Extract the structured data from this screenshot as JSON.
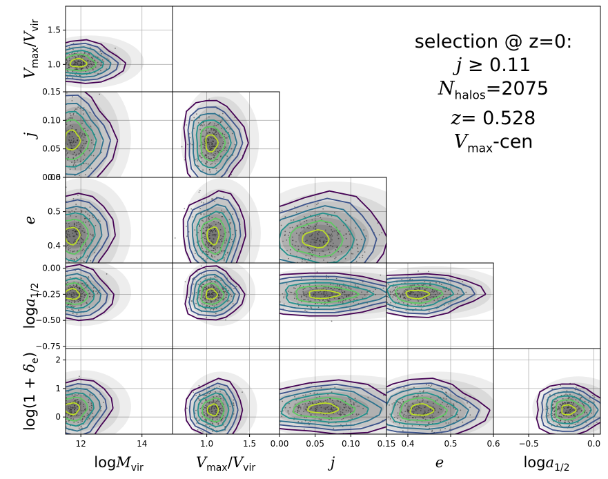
{
  "chart_data": {
    "type": "corner-plot",
    "annotation": {
      "line1": "selection @ z=0:",
      "line2_var": "j",
      "line2_rel": "≥ 0.11",
      "nhalos_label": "halos",
      "nhalos_value": "=2075",
      "z_value": "= 0.528",
      "cen_label": "-cen"
    },
    "variables": [
      {
        "key": "logMvir",
        "tick_values": [
          12,
          14
        ],
        "tick_labels": [
          "12",
          "14"
        ],
        "range": [
          11.5,
          15.0
        ]
      },
      {
        "key": "vmax_vvir",
        "tick_values": [
          1.0,
          1.5
        ],
        "tick_labels": [
          "1.0",
          "1.5"
        ],
        "range": [
          0.6,
          1.85
        ]
      },
      {
        "key": "j",
        "tick_values": [
          0.0,
          0.05,
          0.1,
          0.15
        ],
        "tick_labels": [
          "0.00",
          "0.05",
          "0.10",
          "0.15"
        ],
        "range": [
          0.0,
          0.15
        ]
      },
      {
        "key": "e",
        "tick_values": [
          0.4,
          0.5,
          0.6
        ],
        "tick_labels": [
          "0.4",
          "0.5",
          "0.6"
        ],
        "range": [
          0.35,
          0.6
        ]
      },
      {
        "key": "loga12",
        "tick_values": [
          -0.75,
          -0.5,
          -0.25,
          0.0
        ],
        "tick_labels": [
          "−0.75",
          "−0.50",
          "−0.25",
          "0.00"
        ],
        "xtick_labels": [
          "−0.5",
          "0.0"
        ],
        "xtick_values": [
          -0.5,
          0.0
        ],
        "range": [
          -0.77,
          0.05
        ]
      },
      {
        "key": "logdelta",
        "tick_values": [
          0,
          1,
          2
        ],
        "tick_labels": [
          "0",
          "1",
          "2"
        ],
        "range": [
          -0.6,
          2.4
        ]
      }
    ],
    "x_axis_labels": [
      "logM_vir",
      "V_max/V_vir",
      "j",
      "e",
      "loga_1/2"
    ],
    "y_axis_labels": [
      "V_max/V_vir",
      "j",
      "e",
      "loga_1/2",
      "log(1+δ_e)"
    ],
    "panels": [
      {
        "row": 1,
        "col": 0,
        "xvar": 0,
        "yvar": 1,
        "center": [
          11.9,
          1.02
        ],
        "spread": [
          0.5,
          0.12
        ]
      },
      {
        "row": 2,
        "col": 0,
        "xvar": 0,
        "yvar": 2,
        "center": [
          11.7,
          0.065
        ],
        "spread": [
          0.45,
          0.035
        ]
      },
      {
        "row": 2,
        "col": 1,
        "xvar": 1,
        "yvar": 2,
        "center": [
          1.05,
          0.06
        ],
        "spread": [
          0.13,
          0.03
        ]
      },
      {
        "row": 3,
        "col": 0,
        "xvar": 0,
        "yvar": 3,
        "center": [
          11.7,
          0.43
        ],
        "spread": [
          0.45,
          0.05
        ]
      },
      {
        "row": 3,
        "col": 1,
        "xvar": 1,
        "yvar": 3,
        "center": [
          1.07,
          0.43
        ],
        "spread": [
          0.13,
          0.05
        ]
      },
      {
        "row": 3,
        "col": 2,
        "xvar": 2,
        "yvar": 3,
        "center": [
          0.05,
          0.42
        ],
        "spread": [
          0.035,
          0.05
        ]
      },
      {
        "row": 4,
        "col": 0,
        "xvar": 0,
        "yvar": 4,
        "center": [
          11.7,
          -0.25
        ],
        "spread": [
          0.45,
          0.1
        ]
      },
      {
        "row": 4,
        "col": 1,
        "xvar": 1,
        "yvar": 4,
        "center": [
          1.05,
          -0.25
        ],
        "spread": [
          0.12,
          0.1
        ]
      },
      {
        "row": 4,
        "col": 2,
        "xvar": 2,
        "yvar": 4,
        "center": [
          0.06,
          -0.25
        ],
        "spread": [
          0.04,
          0.08
        ]
      },
      {
        "row": 4,
        "col": 3,
        "xvar": 3,
        "yvar": 4,
        "center": [
          0.42,
          -0.25
        ],
        "spread": [
          0.05,
          0.08
        ]
      },
      {
        "row": 5,
        "col": 0,
        "xvar": 0,
        "yvar": 5,
        "center": [
          11.7,
          0.3
        ],
        "spread": [
          0.45,
          0.4
        ]
      },
      {
        "row": 5,
        "col": 1,
        "xvar": 1,
        "yvar": 5,
        "center": [
          1.07,
          0.25
        ],
        "spread": [
          0.12,
          0.4
        ]
      },
      {
        "row": 5,
        "col": 2,
        "xvar": 2,
        "yvar": 5,
        "center": [
          0.06,
          0.3
        ],
        "spread": [
          0.04,
          0.35
        ]
      },
      {
        "row": 5,
        "col": 3,
        "xvar": 3,
        "yvar": 5,
        "center": [
          0.43,
          0.25
        ],
        "spread": [
          0.05,
          0.4
        ]
      },
      {
        "row": 5,
        "col": 4,
        "xvar": 4,
        "yvar": 5,
        "center": [
          -0.2,
          0.25
        ],
        "spread": [
          0.1,
          0.35
        ]
      }
    ],
    "contour_levels": [
      {
        "scale": 0.5,
        "color": "#bddf26"
      },
      {
        "scale": 1.0,
        "color": "#5ec962"
      },
      {
        "scale": 1.4,
        "color": "#21918c"
      },
      {
        "scale": 1.8,
        "color": "#2c728e"
      },
      {
        "scale": 2.2,
        "color": "#3b528b"
      },
      {
        "scale": 2.6,
        "color": "#440154"
      }
    ],
    "grid": true
  }
}
